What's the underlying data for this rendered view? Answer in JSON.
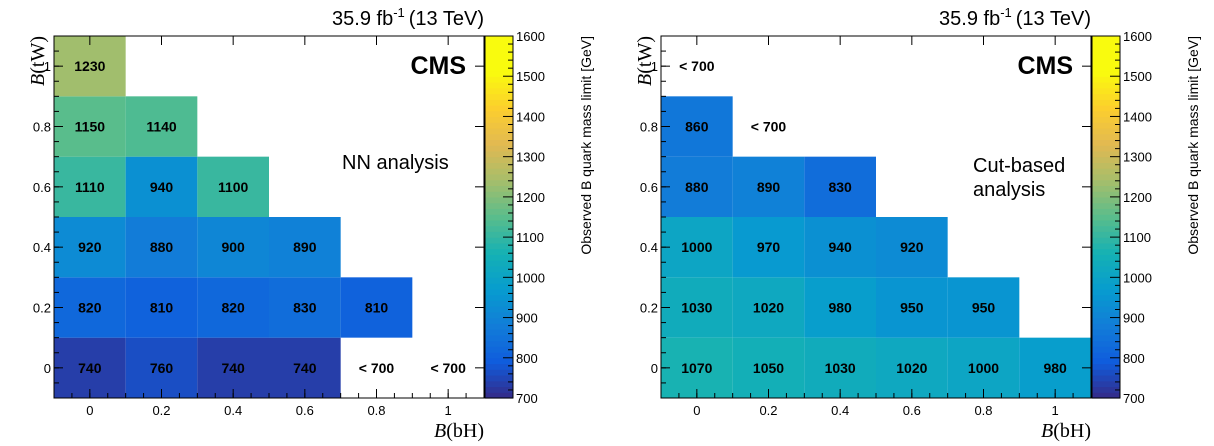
{
  "chart_data": [
    {
      "type": "heatmap",
      "lumi": "35.9 fb",
      "lumi_exp": "-1",
      "energy": "(13 TeV)",
      "cms_label": "CMS",
      "annotation": [
        "NN analysis"
      ],
      "xlabel_main": "B",
      "xlabel_sub": "(bH)",
      "ylabel_main": "B",
      "ylabel_sub": "(tW)",
      "zlabel": "Observed B quark mass limit [GeV]",
      "x_ticks": [
        "0",
        "0.2",
        "0.4",
        "0.6",
        "0.8",
        "1"
      ],
      "y_ticks": [
        "0",
        "0.2",
        "0.4",
        "0.6",
        "0.8",
        "1"
      ],
      "z_ticks": [
        "700",
        "800",
        "900",
        "1000",
        "1100",
        "1200",
        "1300",
        "1400",
        "1500",
        "1600"
      ],
      "zlim": [
        700,
        1600
      ],
      "cells": [
        {
          "bH": 0.0,
          "tW": 0.0,
          "value": 740,
          "label": "740"
        },
        {
          "bH": 0.2,
          "tW": 0.0,
          "value": 760,
          "label": "760"
        },
        {
          "bH": 0.4,
          "tW": 0.0,
          "value": 740,
          "label": "740"
        },
        {
          "bH": 0.6,
          "tW": 0.0,
          "value": 740,
          "label": "740"
        },
        {
          "bH": 0.8,
          "tW": 0.0,
          "value": null,
          "label": "< 700"
        },
        {
          "bH": 1.0,
          "tW": 0.0,
          "value": null,
          "label": "< 700"
        },
        {
          "bH": 0.0,
          "tW": 0.2,
          "value": 820,
          "label": "820"
        },
        {
          "bH": 0.2,
          "tW": 0.2,
          "value": 810,
          "label": "810"
        },
        {
          "bH": 0.4,
          "tW": 0.2,
          "value": 820,
          "label": "820"
        },
        {
          "bH": 0.6,
          "tW": 0.2,
          "value": 830,
          "label": "830"
        },
        {
          "bH": 0.8,
          "tW": 0.2,
          "value": 810,
          "label": "810"
        },
        {
          "bH": 0.0,
          "tW": 0.4,
          "value": 920,
          "label": "920"
        },
        {
          "bH": 0.2,
          "tW": 0.4,
          "value": 880,
          "label": "880"
        },
        {
          "bH": 0.4,
          "tW": 0.4,
          "value": 900,
          "label": "900"
        },
        {
          "bH": 0.6,
          "tW": 0.4,
          "value": 890,
          "label": "890"
        },
        {
          "bH": 0.0,
          "tW": 0.6,
          "value": 1110,
          "label": "1110"
        },
        {
          "bH": 0.2,
          "tW": 0.6,
          "value": 940,
          "label": "940"
        },
        {
          "bH": 0.4,
          "tW": 0.6,
          "value": 1100,
          "label": "1100"
        },
        {
          "bH": 0.0,
          "tW": 0.8,
          "value": 1150,
          "label": "1150"
        },
        {
          "bH": 0.2,
          "tW": 0.8,
          "value": 1140,
          "label": "1140"
        },
        {
          "bH": 0.0,
          "tW": 1.0,
          "value": 1230,
          "label": "1230"
        }
      ]
    },
    {
      "type": "heatmap",
      "lumi": "35.9 fb",
      "lumi_exp": "-1",
      "energy": "(13 TeV)",
      "cms_label": "CMS",
      "annotation": [
        "Cut-based",
        "analysis"
      ],
      "xlabel_main": "B",
      "xlabel_sub": "(bH)",
      "ylabel_main": "B",
      "ylabel_sub": "(tW)",
      "zlabel": "Observed B quark mass limit [GeV]",
      "x_ticks": [
        "0",
        "0.2",
        "0.4",
        "0.6",
        "0.8",
        "1"
      ],
      "y_ticks": [
        "0",
        "0.2",
        "0.4",
        "0.6",
        "0.8",
        "1"
      ],
      "z_ticks": [
        "700",
        "800",
        "900",
        "1000",
        "1100",
        "1200",
        "1300",
        "1400",
        "1500",
        "1600"
      ],
      "zlim": [
        700,
        1600
      ],
      "cells": [
        {
          "bH": 0.0,
          "tW": 0.0,
          "value": 1070,
          "label": "1070"
        },
        {
          "bH": 0.2,
          "tW": 0.0,
          "value": 1050,
          "label": "1050"
        },
        {
          "bH": 0.4,
          "tW": 0.0,
          "value": 1030,
          "label": "1030"
        },
        {
          "bH": 0.6,
          "tW": 0.0,
          "value": 1020,
          "label": "1020"
        },
        {
          "bH": 0.8,
          "tW": 0.0,
          "value": 1000,
          "label": "1000"
        },
        {
          "bH": 1.0,
          "tW": 0.0,
          "value": 980,
          "label": "980"
        },
        {
          "bH": 0.0,
          "tW": 0.2,
          "value": 1030,
          "label": "1030"
        },
        {
          "bH": 0.2,
          "tW": 0.2,
          "value": 1020,
          "label": "1020"
        },
        {
          "bH": 0.4,
          "tW": 0.2,
          "value": 980,
          "label": "980"
        },
        {
          "bH": 0.6,
          "tW": 0.2,
          "value": 950,
          "label": "950"
        },
        {
          "bH": 0.8,
          "tW": 0.2,
          "value": 950,
          "label": "950"
        },
        {
          "bH": 0.0,
          "tW": 0.4,
          "value": 1000,
          "label": "1000"
        },
        {
          "bH": 0.2,
          "tW": 0.4,
          "value": 970,
          "label": "970"
        },
        {
          "bH": 0.4,
          "tW": 0.4,
          "value": 940,
          "label": "940"
        },
        {
          "bH": 0.6,
          "tW": 0.4,
          "value": 920,
          "label": "920"
        },
        {
          "bH": 0.0,
          "tW": 0.6,
          "value": 880,
          "label": "880"
        },
        {
          "bH": 0.2,
          "tW": 0.6,
          "value": 890,
          "label": "890"
        },
        {
          "bH": 0.4,
          "tW": 0.6,
          "value": 830,
          "label": "830"
        },
        {
          "bH": 0.0,
          "tW": 0.8,
          "value": 860,
          "label": "860"
        },
        {
          "bH": 0.2,
          "tW": 0.8,
          "value": null,
          "label": "< 700"
        },
        {
          "bH": 0.0,
          "tW": 1.0,
          "value": null,
          "label": "< 700"
        }
      ]
    }
  ]
}
